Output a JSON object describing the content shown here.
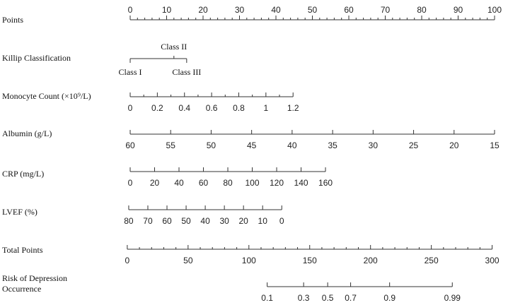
{
  "chart_data": {
    "type": "nomogram",
    "scales": [
      {
        "name": "Points",
        "ticks": [
          {
            "value": 0,
            "label": "0",
            "points": 0
          },
          {
            "value": 10,
            "label": "10",
            "points": 10
          },
          {
            "value": 20,
            "label": "20",
            "points": 20
          },
          {
            "value": 30,
            "label": "30",
            "points": 30
          },
          {
            "value": 40,
            "label": "40",
            "points": 40
          },
          {
            "value": 50,
            "label": "50",
            "points": 50
          },
          {
            "value": 60,
            "label": "60",
            "points": 60
          },
          {
            "value": 70,
            "label": "70",
            "points": 70
          },
          {
            "value": 80,
            "label": "80",
            "points": 80
          },
          {
            "value": 90,
            "label": "90",
            "points": 90
          },
          {
            "value": 100,
            "label": "100",
            "points": 100
          }
        ],
        "minor_per_major": 5,
        "label_position": "above"
      },
      {
        "name": "Killip Classification",
        "categorical": true,
        "ticks": [
          {
            "value": "Class I",
            "label": "Class I",
            "points": 0,
            "label_position": "below"
          },
          {
            "value": "Class II",
            "label": "Class II",
            "points": 12,
            "label_position": "above"
          },
          {
            "value": "Class III",
            "label": "Class III",
            "points": 15.5,
            "label_position": "below"
          }
        ]
      },
      {
        "name": "Monocyte Count (×10⁹/L)",
        "ticks": [
          {
            "value": 0,
            "label": "0",
            "points": 0
          },
          {
            "value": 0.2,
            "label": "0.2",
            "points": 7.45
          },
          {
            "value": 0.4,
            "label": "0.4",
            "points": 14.9
          },
          {
            "value": 0.6,
            "label": "0.6",
            "points": 22.35
          },
          {
            "value": 0.8,
            "label": "0.8",
            "points": 29.8
          },
          {
            "value": 1,
            "label": "1",
            "points": 37.25
          },
          {
            "value": 1.2,
            "label": "1.2",
            "points": 44.7
          }
        ],
        "minor_per_major": 2,
        "label_position": "below"
      },
      {
        "name": "Albumin (g/L)",
        "ticks": [
          {
            "value": 60,
            "label": "60",
            "points": 0
          },
          {
            "value": 55,
            "label": "55",
            "points": 11.11
          },
          {
            "value": 50,
            "label": "50",
            "points": 22.22
          },
          {
            "value": 45,
            "label": "45",
            "points": 33.33
          },
          {
            "value": 40,
            "label": "40",
            "points": 44.44
          },
          {
            "value": 35,
            "label": "35",
            "points": 55.56
          },
          {
            "value": 30,
            "label": "30",
            "points": 66.67
          },
          {
            "value": 25,
            "label": "25",
            "points": 77.78
          },
          {
            "value": 20,
            "label": "20",
            "points": 88.89
          },
          {
            "value": 15,
            "label": "15",
            "points": 100
          }
        ],
        "minor_per_major": 1,
        "label_position": "below"
      },
      {
        "name": "CRP (mg/L)",
        "ticks": [
          {
            "value": 0,
            "label": "0",
            "points": 0
          },
          {
            "value": 20,
            "label": "20",
            "points": 6.7
          },
          {
            "value": 40,
            "label": "40",
            "points": 13.4
          },
          {
            "value": 60,
            "label": "60",
            "points": 20.1
          },
          {
            "value": 80,
            "label": "80",
            "points": 26.8
          },
          {
            "value": 100,
            "label": "100",
            "points": 33.5
          },
          {
            "value": 120,
            "label": "120",
            "points": 40.2
          },
          {
            "value": 140,
            "label": "140",
            "points": 46.9
          },
          {
            "value": 160,
            "label": "160",
            "points": 53.6
          }
        ],
        "minor_per_major": 1,
        "label_position": "below"
      },
      {
        "name": "LVEF (%)",
        "ticks": [
          {
            "value": 80,
            "label": "80",
            "points": -0.4
          },
          {
            "value": 70,
            "label": "70",
            "points": 4.85
          },
          {
            "value": 60,
            "label": "60",
            "points": 10.1
          },
          {
            "value": 50,
            "label": "50",
            "points": 15.35
          },
          {
            "value": 40,
            "label": "40",
            "points": 20.6
          },
          {
            "value": 30,
            "label": "30",
            "points": 25.85
          },
          {
            "value": 20,
            "label": "20",
            "points": 31.1
          },
          {
            "value": 10,
            "label": "10",
            "points": 36.35
          },
          {
            "value": 0,
            "label": "0",
            "points": 41.6
          }
        ],
        "minor_per_major": 1,
        "label_position": "below"
      },
      {
        "name": "Total Points",
        "ticks": [
          {
            "value": 0,
            "label": "0",
            "points": -0.8
          },
          {
            "value": 50,
            "label": "50",
            "points": 15.89
          },
          {
            "value": 100,
            "label": "100",
            "points": 32.58
          },
          {
            "value": 150,
            "label": "150",
            "points": 49.27
          },
          {
            "value": 200,
            "label": "200",
            "points": 65.96
          },
          {
            "value": 250,
            "label": "250",
            "points": 82.65
          },
          {
            "value": 300,
            "label": "300",
            "points": 99.33
          }
        ],
        "minor_per_major": 5,
        "label_position": "below"
      },
      {
        "name": "Risk of Depression Occurrence",
        "ticks": [
          {
            "value": 0.1,
            "label": "0.1",
            "points": 37.6
          },
          {
            "value": 0.3,
            "label": "0.3",
            "points": 47.6
          },
          {
            "value": 0.5,
            "label": "0.5",
            "points": 54.2
          },
          {
            "value": 0.7,
            "label": "0.7",
            "points": 60.5
          },
          {
            "value": 0.9,
            "label": "0.9",
            "points": 71.2
          },
          {
            "value": 0.99,
            "label": "0.99",
            "points": 88.4
          }
        ],
        "minor_per_major": 0,
        "label_position": "below"
      }
    ]
  }
}
